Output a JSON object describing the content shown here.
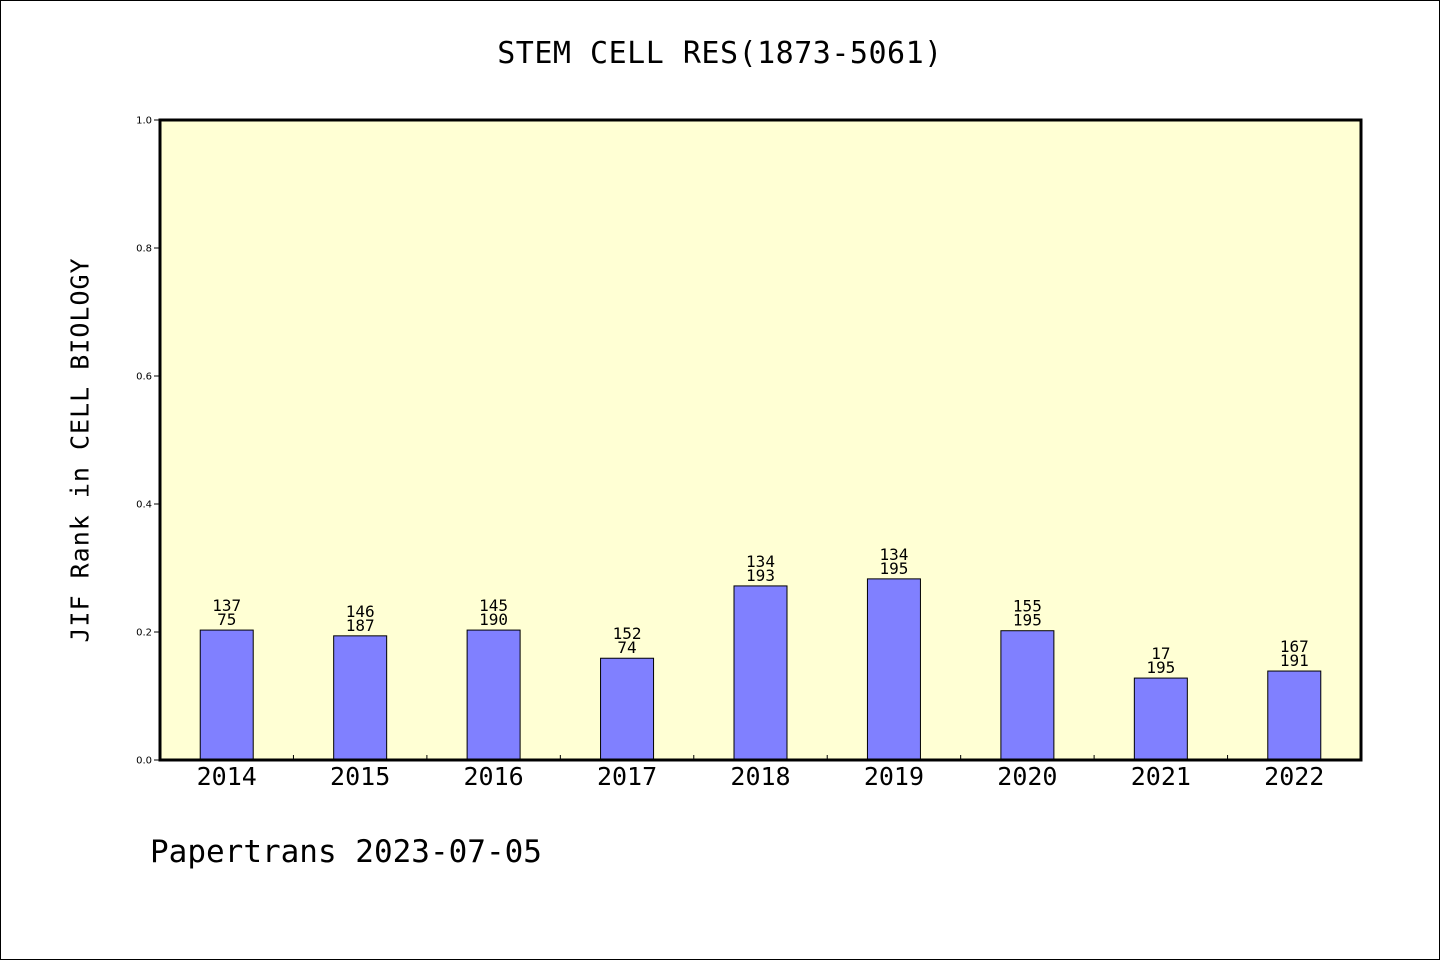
{
  "chart_data": {
    "type": "bar",
    "title": "STEM CELL RES(1873-5061)",
    "xlabel": "",
    "ylabel": "JIF Rank in CELL BIOLOGY",
    "ylim": [
      0,
      1.0
    ],
    "yticks": [
      "0.0",
      "0.2",
      "0.4",
      "0.6",
      "0.8",
      "1.0"
    ],
    "categories": [
      "2014",
      "2015",
      "2016",
      "2017",
      "2018",
      "2019",
      "2020",
      "2021",
      "2022"
    ],
    "values": [
      0.203,
      0.194,
      0.203,
      0.159,
      0.272,
      0.283,
      0.202,
      0.128,
      0.139
    ],
    "labels_top": [
      "137",
      "146",
      "145",
      "152",
      "134",
      "134",
      "155",
      "17",
      "167"
    ],
    "labels_bottom": [
      "75",
      "187",
      "190",
      "74",
      "193",
      "195",
      "195",
      "195",
      "191"
    ],
    "grid": false,
    "colors": {
      "plot_background": "#ffffd4",
      "bar_fill": "#8080ff",
      "bar_stroke": "#000000"
    }
  },
  "footer": "Papertrans 2023-07-05"
}
